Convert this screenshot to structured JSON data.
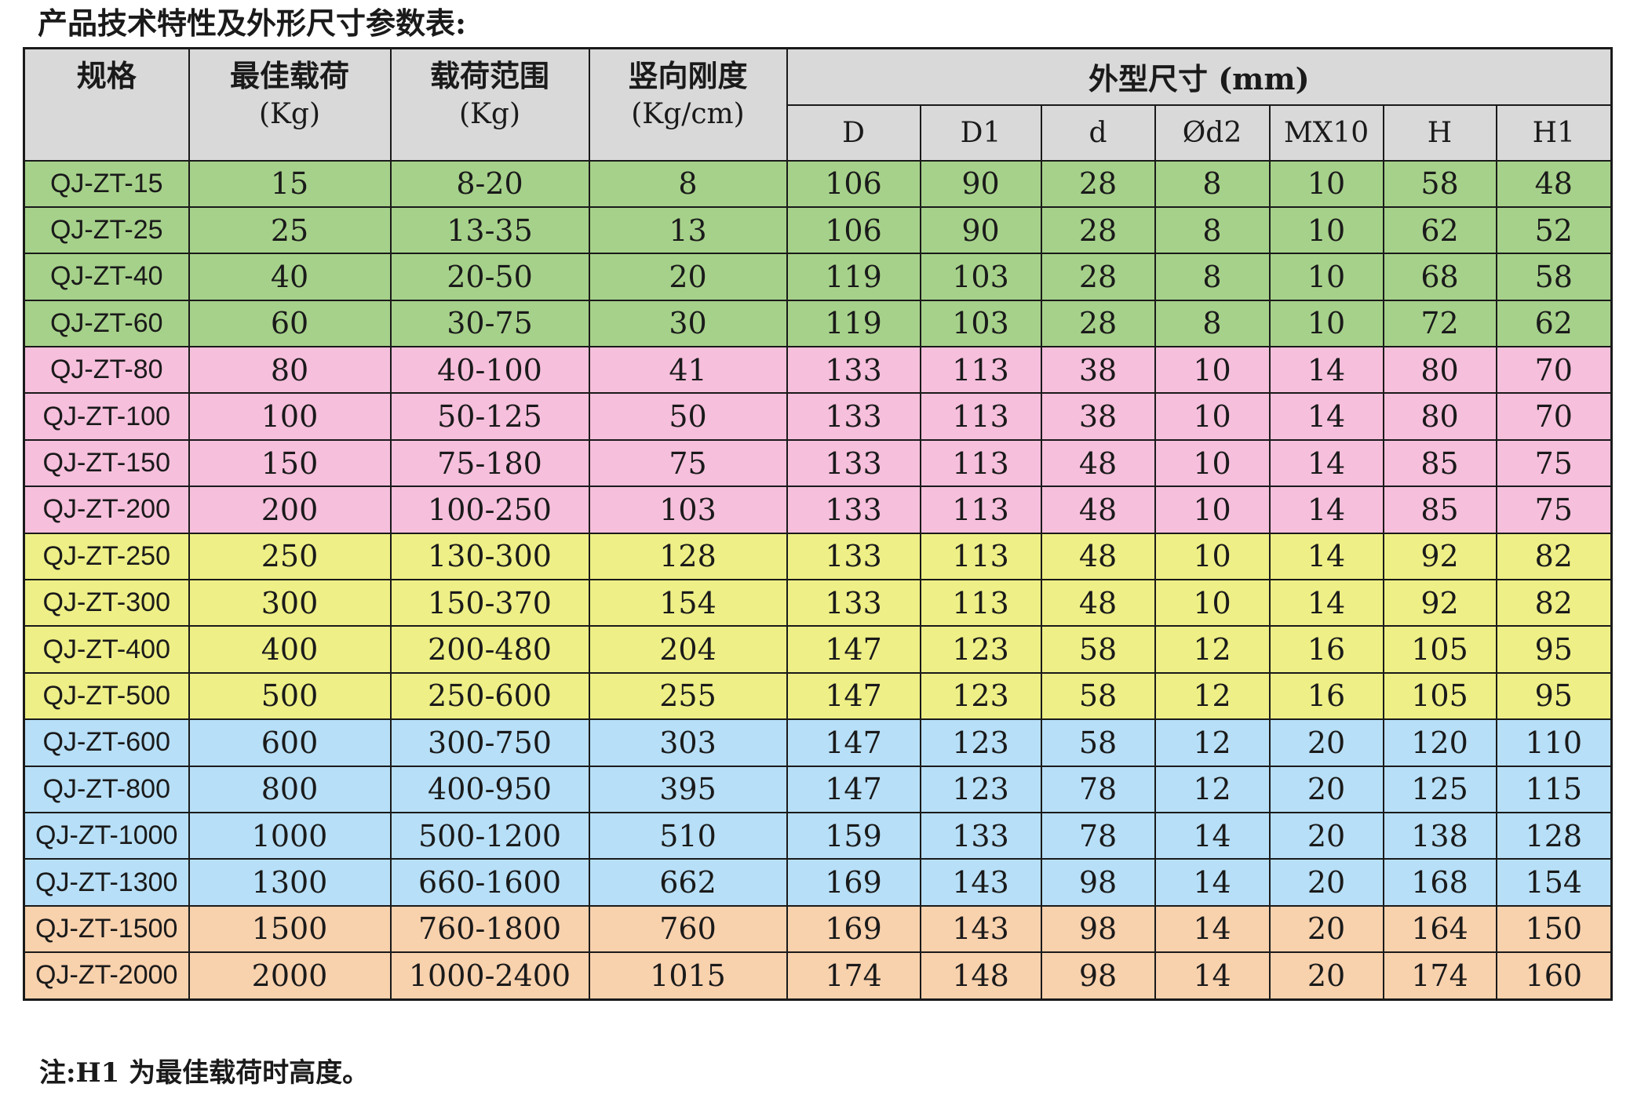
{
  "title": "产品技术特性及外形尺寸参数表:",
  "table": {
    "headers": {
      "model": "规格",
      "best_load": {
        "label": "最佳载荷",
        "unit": "(Kg)"
      },
      "load_range": {
        "label": "载荷范围",
        "unit": "(Kg)"
      },
      "stiffness": {
        "label": "竖向刚度",
        "unit": "(Kg/cm)"
      },
      "dimensions": "外型尺寸 (mm)",
      "dims": [
        "D",
        "D1",
        "d",
        "Ød2",
        "MX10",
        "H",
        "H1"
      ]
    },
    "group_colors": {
      "green": "#a6d18a",
      "pink": "#f6bfdc",
      "yellow": "#eeef86",
      "blue": "#b7dff7",
      "orange": "#f8d1ad"
    },
    "rows": [
      {
        "group": "green",
        "cells": [
          "QJ-ZT-15",
          "15",
          "8-20",
          "8",
          "106",
          "90",
          "28",
          "8",
          "10",
          "58",
          "48"
        ]
      },
      {
        "group": "green",
        "cells": [
          "QJ-ZT-25",
          "25",
          "13-35",
          "13",
          "106",
          "90",
          "28",
          "8",
          "10",
          "62",
          "52"
        ]
      },
      {
        "group": "green",
        "cells": [
          "QJ-ZT-40",
          "40",
          "20-50",
          "20",
          "119",
          "103",
          "28",
          "8",
          "10",
          "68",
          "58"
        ]
      },
      {
        "group": "green",
        "cells": [
          "QJ-ZT-60",
          "60",
          "30-75",
          "30",
          "119",
          "103",
          "28",
          "8",
          "10",
          "72",
          "62"
        ]
      },
      {
        "group": "pink",
        "cells": [
          "QJ-ZT-80",
          "80",
          "40-100",
          "41",
          "133",
          "113",
          "38",
          "10",
          "14",
          "80",
          "70"
        ]
      },
      {
        "group": "pink",
        "cells": [
          "QJ-ZT-100",
          "100",
          "50-125",
          "50",
          "133",
          "113",
          "38",
          "10",
          "14",
          "80",
          "70"
        ]
      },
      {
        "group": "pink",
        "cells": [
          "QJ-ZT-150",
          "150",
          "75-180",
          "75",
          "133",
          "113",
          "48",
          "10",
          "14",
          "85",
          "75"
        ]
      },
      {
        "group": "pink",
        "cells": [
          "QJ-ZT-200",
          "200",
          "100-250",
          "103",
          "133",
          "113",
          "48",
          "10",
          "14",
          "85",
          "75"
        ]
      },
      {
        "group": "yellow",
        "cells": [
          "QJ-ZT-250",
          "250",
          "130-300",
          "128",
          "133",
          "113",
          "48",
          "10",
          "14",
          "92",
          "82"
        ]
      },
      {
        "group": "yellow",
        "cells": [
          "QJ-ZT-300",
          "300",
          "150-370",
          "154",
          "133",
          "113",
          "48",
          "10",
          "14",
          "92",
          "82"
        ]
      },
      {
        "group": "yellow",
        "cells": [
          "QJ-ZT-400",
          "400",
          "200-480",
          "204",
          "147",
          "123",
          "58",
          "12",
          "16",
          "105",
          "95"
        ]
      },
      {
        "group": "yellow",
        "cells": [
          "QJ-ZT-500",
          "500",
          "250-600",
          "255",
          "147",
          "123",
          "58",
          "12",
          "16",
          "105",
          "95"
        ]
      },
      {
        "group": "blue",
        "cells": [
          "QJ-ZT-600",
          "600",
          "300-750",
          "303",
          "147",
          "123",
          "58",
          "12",
          "20",
          "120",
          "110"
        ]
      },
      {
        "group": "blue",
        "cells": [
          "QJ-ZT-800",
          "800",
          "400-950",
          "395",
          "147",
          "123",
          "78",
          "12",
          "20",
          "125",
          "115"
        ]
      },
      {
        "group": "blue",
        "cells": [
          "QJ-ZT-1000",
          "1000",
          "500-1200",
          "510",
          "159",
          "133",
          "78",
          "14",
          "20",
          "138",
          "128"
        ]
      },
      {
        "group": "blue",
        "cells": [
          "QJ-ZT-1300",
          "1300",
          "660-1600",
          "662",
          "169",
          "143",
          "98",
          "14",
          "20",
          "168",
          "154"
        ]
      },
      {
        "group": "orange",
        "cells": [
          "QJ-ZT-1500",
          "1500",
          "760-1800",
          "760",
          "169",
          "143",
          "98",
          "14",
          "20",
          "164",
          "150"
        ]
      },
      {
        "group": "orange",
        "cells": [
          "QJ-ZT-2000",
          "2000",
          "1000-2400",
          "1015",
          "174",
          "148",
          "98",
          "14",
          "20",
          "174",
          "160"
        ]
      }
    ]
  },
  "note": "注:H1 为最佳载荷时高度。"
}
